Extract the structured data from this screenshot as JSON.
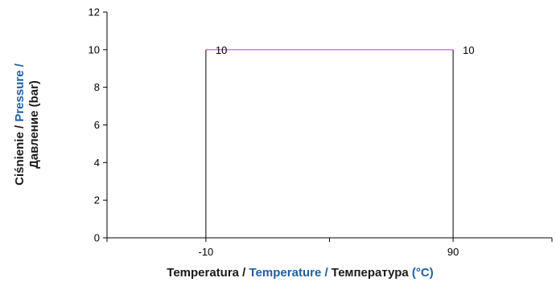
{
  "chart_data": {
    "type": "line",
    "title": "",
    "xlabel": {
      "parts": [
        {
          "text": "Temperatura  / ",
          "color": "#1a1a1a"
        },
        {
          "text": "Temperature / ",
          "color": "#1f5fa6"
        },
        {
          "text": "Температура ",
          "color": "#1a1a1a"
        },
        {
          "text": "(°C)",
          "color": "#1f5fa6"
        }
      ]
    },
    "ylabel": {
      "line1": [
        {
          "text": "Ciśnienie  / ",
          "color": "#1a1a1a"
        },
        {
          "text": "Pressure /",
          "color": "#1f5fa6"
        }
      ],
      "line2": [
        {
          "text": "Давление (bar)",
          "color": "#1a1a1a"
        }
      ]
    },
    "xlim": [
      -50,
      130
    ],
    "ylim": [
      0,
      12
    ],
    "yticks": [
      0,
      2,
      4,
      6,
      8,
      10,
      12
    ],
    "xtick_labels": [
      {
        "value": -10,
        "label": "-10"
      },
      {
        "value": 90,
        "label": "90"
      }
    ],
    "xtick_marks": [
      -50,
      -10,
      40,
      90,
      130
    ],
    "grid": false,
    "legend": "none",
    "series": [
      {
        "x": [
          -10,
          -10,
          90,
          90
        ],
        "y": [
          0,
          10,
          10,
          0
        ],
        "color": "#000000",
        "top_color": "#cc33cc"
      }
    ],
    "data_labels": [
      {
        "x": -10,
        "y": 10,
        "text": "10"
      },
      {
        "x": 90,
        "y": 10,
        "text": "10"
      }
    ]
  }
}
